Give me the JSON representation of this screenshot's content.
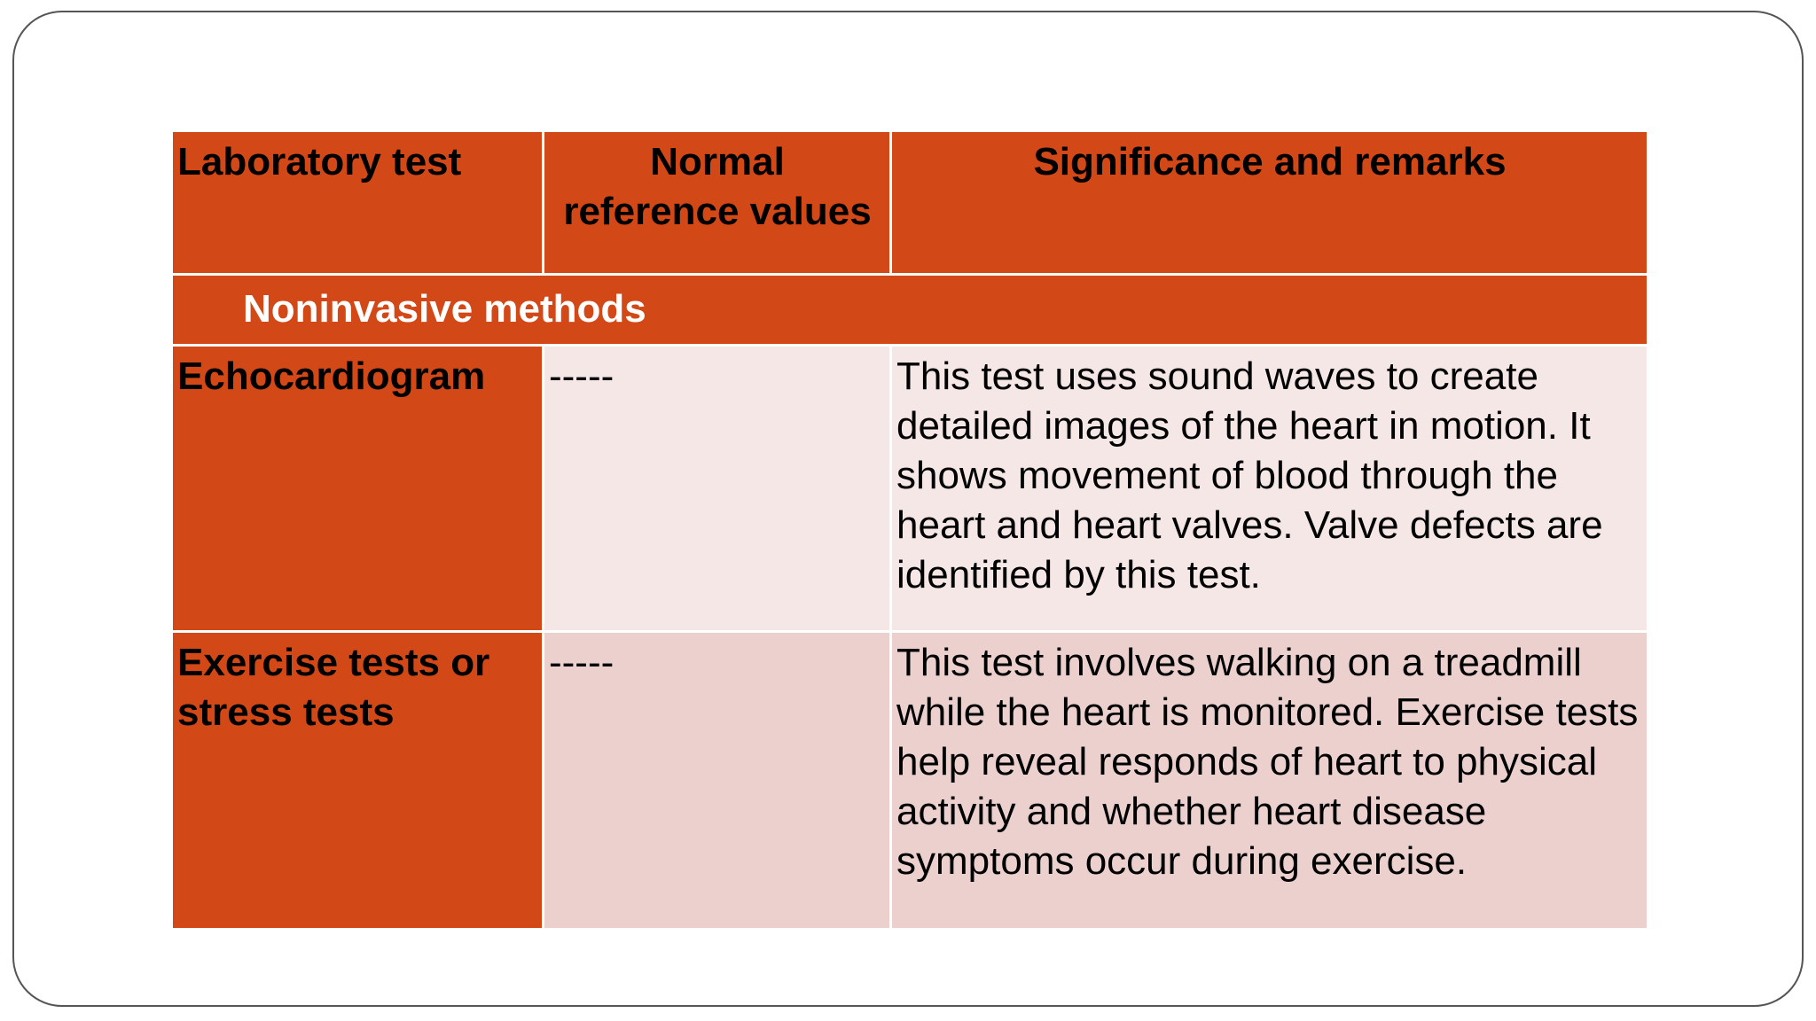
{
  "table": {
    "headers": [
      "Laboratory test",
      "Normal reference values",
      "Significance and remarks"
    ],
    "header_value_line1": "Normal",
    "header_value_line2": "reference values",
    "section_label": "Noninvasive methods",
    "rows": [
      {
        "test": "Echocardiogram",
        "normal_values": "-----",
        "remarks": "This test uses sound waves to create detailed images of the heart in motion. It shows movement of blood through the heart and heart valves. Valve defects are identified by this test."
      },
      {
        "test": "Exercise tests or stress tests",
        "normal_values": "-----",
        "remarks": "This test involves walking on a treadmill while the heart is monitored. Exercise tests help reveal responds of heart to physical activity and whether heart disease symptoms occur during exercise."
      }
    ]
  },
  "colors": {
    "header_fill": "#d34817",
    "row_fill_light": "#f4e7e5",
    "row_fill_medium": "#ecd0ce",
    "frame_border": "#555555"
  }
}
